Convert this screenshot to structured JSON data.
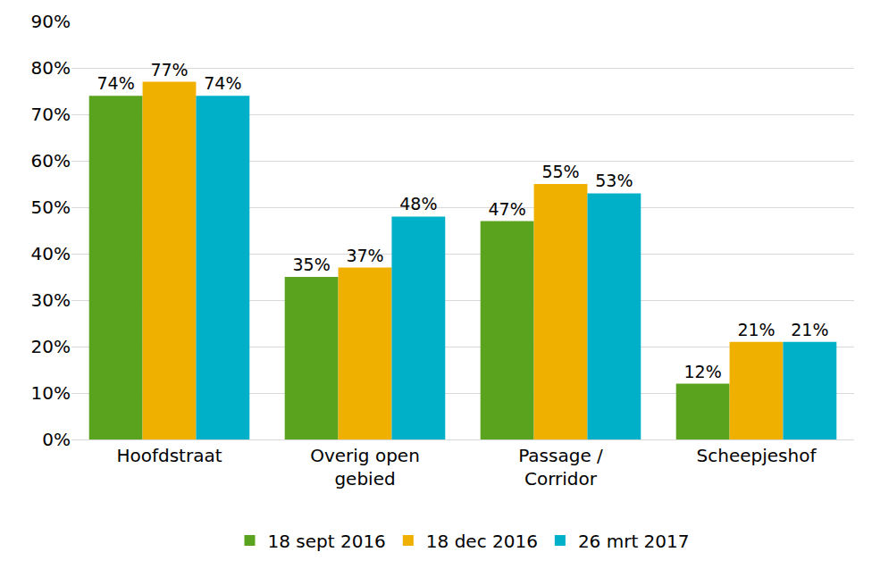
{
  "chart_data": {
    "type": "bar",
    "categories": [
      "Hoofdstraat",
      "Overig open gebied",
      "Passage / Corridor",
      "Scheepjeshof"
    ],
    "series": [
      {
        "name": "18 sept 2016",
        "color": "#5aa31f",
        "values": [
          74,
          35,
          47,
          12
        ],
        "value_labels": [
          "74%",
          "35%",
          "47%",
          "12%"
        ]
      },
      {
        "name": "18 dec 2016",
        "color": "#f0b000",
        "values": [
          77,
          37,
          55,
          21
        ],
        "value_labels": [
          "77%",
          "37%",
          "55%",
          "21%"
        ]
      },
      {
        "name": "26 mrt 2017",
        "color": "#00afc8",
        "values": [
          74,
          48,
          53,
          21
        ],
        "value_labels": [
          "74%",
          "48%",
          "53%",
          "21%"
        ]
      }
    ],
    "ylim": [
      0,
      90
    ],
    "yticks": [
      {
        "value": 0,
        "label": "0%"
      },
      {
        "value": 10,
        "label": "10%"
      },
      {
        "value": 20,
        "label": "20%"
      },
      {
        "value": 30,
        "label": "30%"
      },
      {
        "value": 40,
        "label": "40%"
      },
      {
        "value": 50,
        "label": "50%"
      },
      {
        "value": 60,
        "label": "60%"
      },
      {
        "value": 70,
        "label": "70%"
      },
      {
        "value": 80,
        "label": "80%"
      },
      {
        "value": 90,
        "label": "90%"
      }
    ],
    "grid": true,
    "legend": "bottom",
    "data_labels": true
  }
}
